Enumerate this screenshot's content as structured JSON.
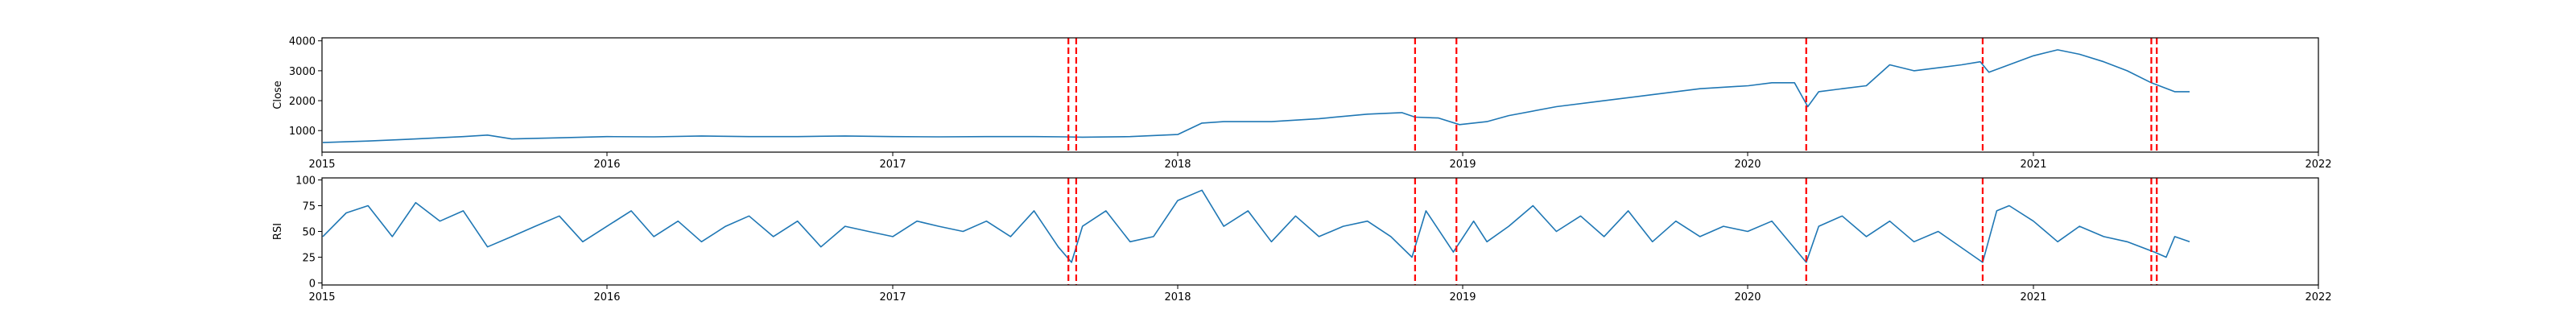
{
  "chart_data": [
    {
      "type": "line",
      "title": "",
      "xlabel": "",
      "ylabel": "Close",
      "xlim": [
        "2015-01-01",
        "2022-01-01"
      ],
      "ylim": [
        280,
        4100
      ],
      "x_ticks": [
        "2015",
        "2016",
        "2017",
        "2018",
        "2019",
        "2020",
        "2021",
        "2022"
      ],
      "y_ticks": [
        1000,
        2000,
        3000,
        4000
      ],
      "y_tick_labels": [
        "1000",
        "2000",
        "3000",
        "4000"
      ],
      "grid": false,
      "line_color": "#1f77b4",
      "marker_color": "#ff0000",
      "series": [
        {
          "x": [
            "2015-01-02",
            "2015-03-01",
            "2015-05-01",
            "2015-07-01",
            "2015-08-01",
            "2015-09-01",
            "2015-11-01",
            "2016-01-01",
            "2016-03-01",
            "2016-05-01",
            "2016-07-01",
            "2016-09-01",
            "2016-11-01",
            "2017-01-01",
            "2017-03-01",
            "2017-05-01",
            "2017-07-01",
            "2017-08-10",
            "2017-09-01",
            "2017-11-01",
            "2018-01-01",
            "2018-02-01",
            "2018-03-01",
            "2018-05-01",
            "2018-07-01",
            "2018-09-01",
            "2018-10-15",
            "2018-11-01",
            "2018-12-01",
            "2018-12-28",
            "2019-02-01",
            "2019-03-01",
            "2019-05-01",
            "2019-07-01",
            "2019-09-01",
            "2019-11-01",
            "2020-01-02",
            "2020-02-01",
            "2020-03-01",
            "2020-03-18",
            "2020-04-01",
            "2020-05-01",
            "2020-06-01",
            "2020-07-01",
            "2020-08-01",
            "2020-09-01",
            "2020-10-01",
            "2020-10-25",
            "2020-11-05",
            "2021-01-01",
            "2021-02-01",
            "2021-03-01",
            "2021-04-01",
            "2021-05-01",
            "2021-06-01",
            "2021-07-01",
            "2021-07-20"
          ],
          "y": [
            600,
            650,
            720,
            800,
            850,
            720,
            760,
            800,
            790,
            820,
            800,
            800,
            820,
            800,
            790,
            800,
            800,
            790,
            780,
            800,
            870,
            1250,
            1300,
            1300,
            1400,
            1550,
            1600,
            1450,
            1420,
            1200,
            1300,
            1500,
            1800,
            2000,
            2200,
            2400,
            2500,
            2600,
            2600,
            1800,
            2300,
            2400,
            2500,
            3200,
            3000,
            3100,
            3200,
            3300,
            2950,
            3500,
            3700,
            3550,
            3300,
            3000,
            2600,
            2300,
            2300
          ]
        }
      ],
      "markers": [
        "2017-08-14",
        "2017-08-24",
        "2018-11-01",
        "2018-12-24",
        "2020-03-16",
        "2020-10-28",
        "2021-06-01",
        "2021-06-08"
      ]
    },
    {
      "type": "line",
      "title": "",
      "xlabel": "",
      "ylabel": "RSI",
      "xlim": [
        "2015-01-01",
        "2022-01-01"
      ],
      "ylim": [
        -2,
        102
      ],
      "x_ticks": [
        "2015",
        "2016",
        "2017",
        "2018",
        "2019",
        "2020",
        "2021",
        "2022"
      ],
      "y_ticks": [
        0,
        25,
        50,
        75,
        100
      ],
      "y_tick_labels": [
        "0",
        "25",
        "50",
        "75",
        "100"
      ],
      "grid": false,
      "line_color": "#1f77b4",
      "marker_color": "#ff0000",
      "series": [
        {
          "x": [
            "2015-01-02",
            "2015-02-01",
            "2015-03-01",
            "2015-04-01",
            "2015-05-01",
            "2015-06-01",
            "2015-07-01",
            "2015-08-01",
            "2015-09-01",
            "2015-10-01",
            "2015-11-01",
            "2015-12-01",
            "2016-01-01",
            "2016-02-01",
            "2016-03-01",
            "2016-04-01",
            "2016-05-01",
            "2016-06-01",
            "2016-07-01",
            "2016-08-01",
            "2016-09-01",
            "2016-10-01",
            "2016-11-01",
            "2016-12-01",
            "2017-01-01",
            "2017-02-01",
            "2017-03-01",
            "2017-04-01",
            "2017-05-01",
            "2017-06-01",
            "2017-07-01",
            "2017-08-01",
            "2017-08-18",
            "2017-09-01",
            "2017-10-01",
            "2017-11-01",
            "2017-12-01",
            "2018-01-01",
            "2018-02-01",
            "2018-03-01",
            "2018-04-01",
            "2018-05-01",
            "2018-06-01",
            "2018-07-01",
            "2018-08-01",
            "2018-09-01",
            "2018-10-01",
            "2018-10-28",
            "2018-11-15",
            "2018-12-20",
            "2019-01-15",
            "2019-02-01",
            "2019-03-01",
            "2019-04-01",
            "2019-05-01",
            "2019-06-01",
            "2019-07-01",
            "2019-08-01",
            "2019-09-01",
            "2019-10-01",
            "2019-11-01",
            "2019-12-01",
            "2020-01-01",
            "2020-02-01",
            "2020-03-16",
            "2020-04-01",
            "2020-05-01",
            "2020-06-01",
            "2020-07-01",
            "2020-08-01",
            "2020-09-01",
            "2020-10-28",
            "2020-11-15",
            "2020-12-01",
            "2021-01-01",
            "2021-02-01",
            "2021-03-01",
            "2021-04-01",
            "2021-05-01",
            "2021-06-05",
            "2021-06-20",
            "2021-07-01",
            "2021-07-20"
          ],
          "y": [
            45,
            68,
            75,
            45,
            78,
            60,
            70,
            35,
            45,
            55,
            65,
            40,
            55,
            70,
            45,
            60,
            40,
            55,
            65,
            45,
            60,
            35,
            55,
            50,
            45,
            60,
            55,
            50,
            60,
            45,
            70,
            35,
            20,
            55,
            70,
            40,
            45,
            80,
            90,
            55,
            70,
            40,
            65,
            45,
            55,
            60,
            45,
            25,
            70,
            30,
            60,
            40,
            55,
            75,
            50,
            65,
            45,
            70,
            40,
            60,
            45,
            55,
            50,
            60,
            20,
            55,
            65,
            45,
            60,
            40,
            50,
            20,
            70,
            75,
            60,
            40,
            55,
            45,
            40,
            30,
            25,
            45,
            40
          ]
        }
      ],
      "markers": [
        "2017-08-14",
        "2017-08-24",
        "2018-11-01",
        "2018-12-24",
        "2020-03-16",
        "2020-10-28",
        "2021-06-01",
        "2021-06-08"
      ]
    }
  ]
}
